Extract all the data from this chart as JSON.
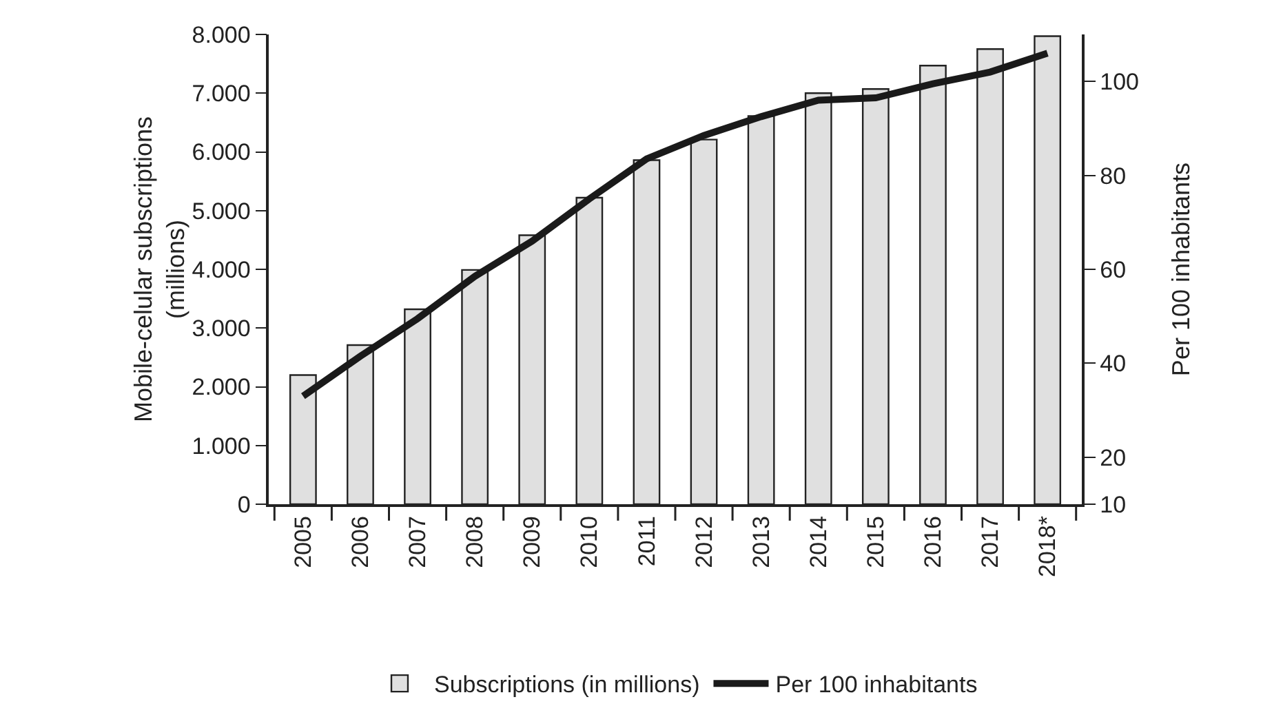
{
  "chart_data": {
    "type": "bar",
    "ylabel": "Mobile-celular subscriptions\n(millions)",
    "y2label": "Per 100 inhabitants",
    "categories": [
      "2005",
      "2006",
      "2007",
      "2008",
      "2009",
      "2010",
      "2011",
      "2012",
      "2013",
      "2014",
      "2015",
      "2016",
      "2017",
      "2018*"
    ],
    "series": [
      {
        "name": "Subscriptions (in millions)",
        "color": "#e0e0e0",
        "values": [
          2200,
          2710,
          3320,
          3990,
          4580,
          5220,
          5860,
          6210,
          6610,
          7000,
          7070,
          7470,
          7750,
          7970
        ]
      },
      {
        "name": "Per 100 inhabitants",
        "type": "line",
        "axis": "y2",
        "color": "#1a1a1a",
        "values": [
          33,
          41.5,
          49.5,
          58.5,
          66,
          75,
          83.5,
          88.5,
          92.5,
          96,
          96.5,
          99.5,
          102,
          106
        ]
      }
    ],
    "ylim": [
      0,
      8000
    ],
    "yticks": [
      {
        "value": 0,
        "label": "0"
      },
      {
        "value": 1000,
        "label": "1.000"
      },
      {
        "value": 2000,
        "label": "2.000"
      },
      {
        "value": 3000,
        "label": "3.000"
      },
      {
        "value": 4000,
        "label": "4.000"
      },
      {
        "value": 5000,
        "label": "5.000"
      },
      {
        "value": 6000,
        "label": "6.000"
      },
      {
        "value": 7000,
        "label": "7.000"
      },
      {
        "value": 8000,
        "label": "8.000"
      }
    ],
    "y2lim": [
      10,
      110
    ],
    "y2ticks": [
      10,
      20,
      40,
      60,
      80,
      100
    ],
    "grid": false,
    "legend": "bottom",
    "marker": "none",
    "line_style": "solid"
  }
}
